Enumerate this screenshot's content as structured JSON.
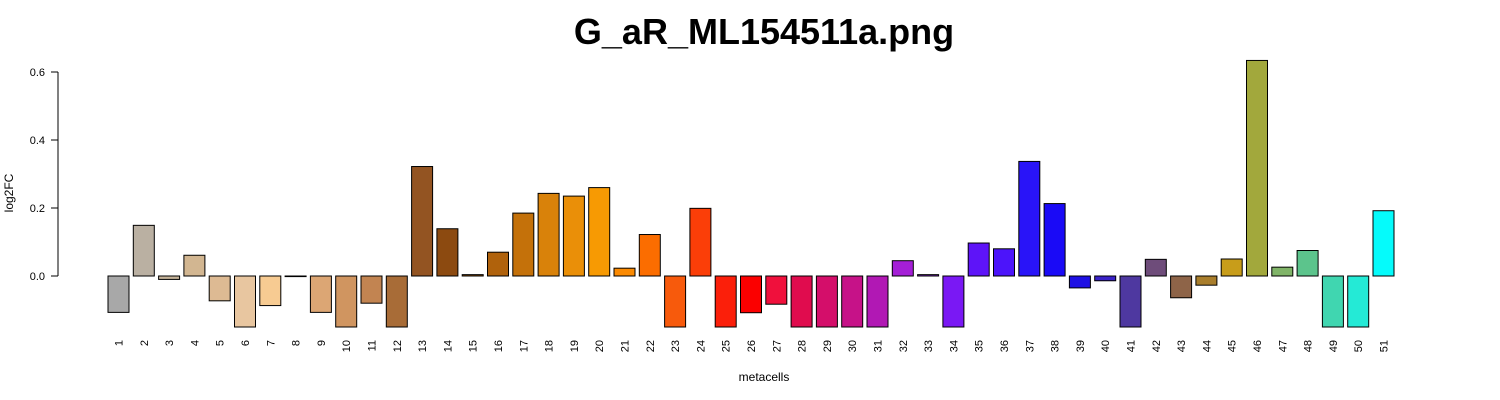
{
  "chart_data": {
    "type": "bar",
    "title": "G_aR_ML154511a.png",
    "xlabel": "metacells",
    "ylabel": "log2FC",
    "ylim": [
      -0.15,
      0.634
    ],
    "yticks": [
      0.0,
      0.2,
      0.4,
      0.6
    ],
    "ytick_labels": [
      "0.0",
      "0.2",
      "0.4",
      "0.6"
    ],
    "grid": false,
    "categories": [
      "1",
      "2",
      "3",
      "4",
      "5",
      "6",
      "7",
      "8",
      "9",
      "10",
      "11",
      "12",
      "13",
      "14",
      "15",
      "16",
      "17",
      "18",
      "19",
      "20",
      "21",
      "22",
      "23",
      "24",
      "25",
      "26",
      "27",
      "28",
      "29",
      "30",
      "31",
      "32",
      "33",
      "34",
      "35",
      "36",
      "37",
      "38",
      "39",
      "40",
      "41",
      "42",
      "43",
      "44",
      "45",
      "46",
      "47",
      "48",
      "49",
      "50",
      "51"
    ],
    "values": [
      -0.107,
      0.149,
      -0.01,
      0.061,
      -0.073,
      -0.15,
      -0.087,
      -0.001,
      -0.107,
      -0.15,
      -0.08,
      -0.15,
      0.322,
      0.139,
      0.004,
      0.07,
      0.185,
      0.243,
      0.235,
      0.26,
      0.023,
      0.122,
      -0.15,
      0.199,
      -0.15,
      -0.108,
      -0.083,
      -0.15,
      -0.15,
      -0.15,
      -0.15,
      0.045,
      0.004,
      -0.15,
      0.097,
      0.08,
      0.337,
      0.213,
      -0.035,
      -0.014,
      -0.15,
      0.049,
      -0.064,
      -0.027,
      0.05,
      0.634,
      0.026,
      0.075,
      -0.15,
      -0.15,
      0.192
    ],
    "colors": [
      "#A8A8A8",
      "#BAB0A2",
      "#C6B49A",
      "#D2B691",
      "#DDBA93",
      "#E8C6A0",
      "#F7CB92",
      "#EFCB9A",
      "#DCA674",
      "#D09560",
      "#C28451",
      "#A86C37",
      "#935422",
      "#8C4A10",
      "#A45808",
      "#B0620C",
      "#C4710A",
      "#D9820A",
      "#EA8F08",
      "#F79A03",
      "#FB8A02",
      "#FB6D00",
      "#F75A0C",
      "#FB3E08",
      "#FB1F0A",
      "#FB0000",
      "#F0103C",
      "#E00C4E",
      "#D40E6A",
      "#C61288",
      "#B118B4",
      "#A41FD6",
      "#8E28E0",
      "#7A18F4",
      "#5E14F8",
      "#4C14FA",
      "#2914F8",
      "#1A0AF6",
      "#1E10E4",
      "#3A22C8",
      "#4E38A0",
      "#6E4C7A",
      "#8E6448",
      "#A97E2C",
      "#C89D1A",
      "#A2A83C",
      "#80B468",
      "#5CC48C",
      "#40D6B0",
      "#24EAD6",
      "#05FBFB"
    ]
  }
}
